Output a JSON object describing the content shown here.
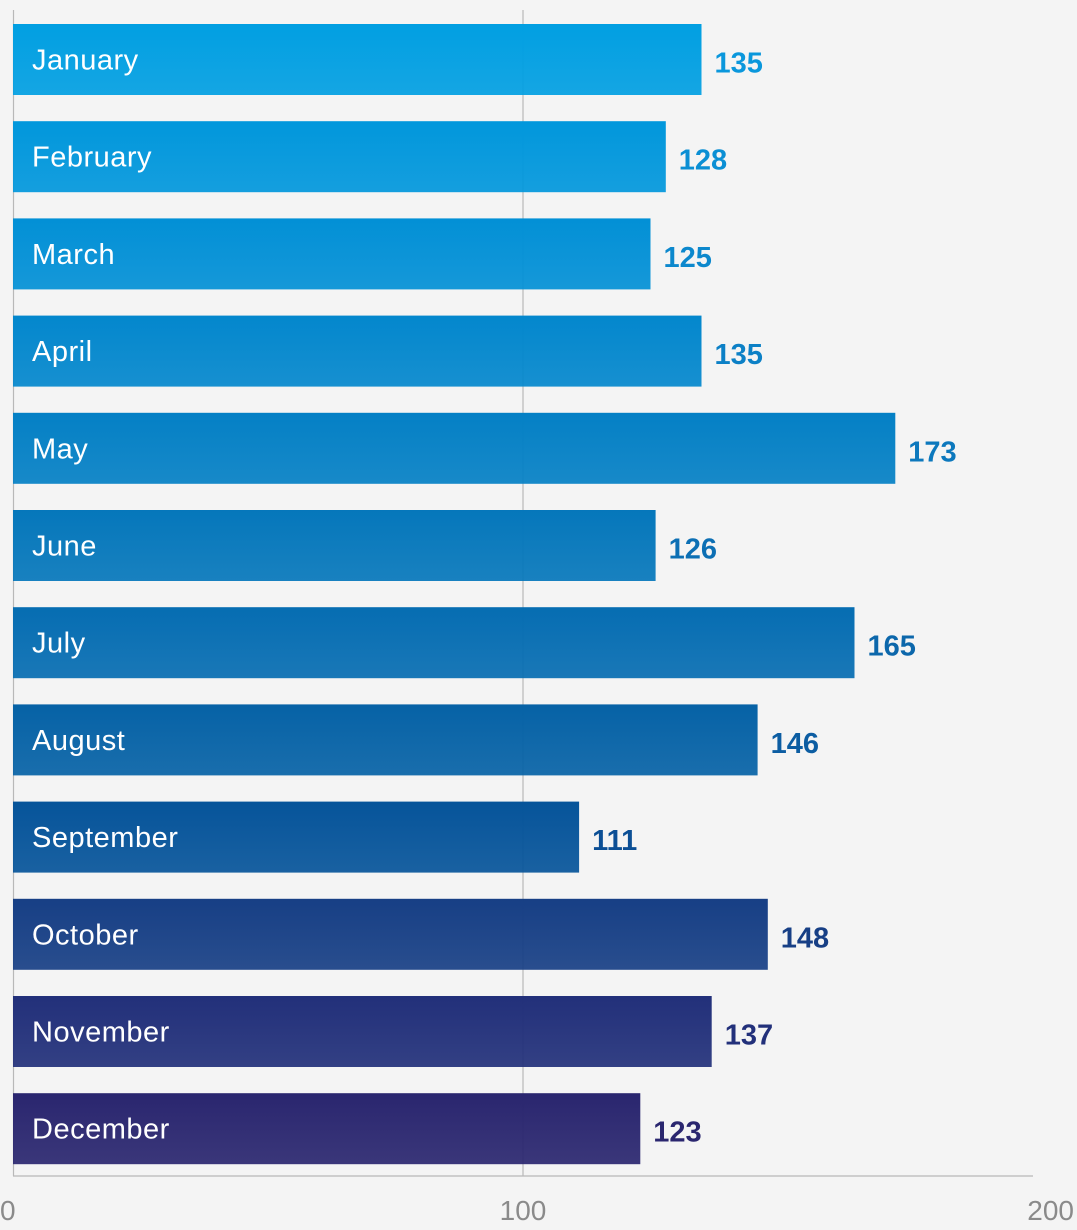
{
  "chart_data": {
    "type": "bar",
    "orientation": "horizontal",
    "categories": [
      "January",
      "February",
      "March",
      "April",
      "May",
      "June",
      "July",
      "August",
      "September",
      "October",
      "November",
      "December"
    ],
    "values": [
      135,
      128,
      125,
      135,
      173,
      126,
      165,
      146,
      111,
      148,
      137,
      123
    ],
    "xlim": [
      0,
      200
    ],
    "x_ticks": [
      "0",
      "100",
      "200"
    ],
    "title": "",
    "xlabel": "",
    "ylabel": "",
    "grid": "vertical at 100",
    "legend": "none",
    "bar_colors": [
      "#019fe2",
      "#0197dc",
      "#0290d6",
      "#0387cd",
      "#0480c5",
      "#0577bb",
      "#066db2",
      "#0662a6",
      "#06549a",
      "#173f85",
      "#22307a",
      "#2a266f"
    ],
    "label_colors": [
      "#0a97dc",
      "#0b8fd4",
      "#0c88cd",
      "#0c80c6",
      "#0c78bd",
      "#0c6fb4",
      "#0c67ab",
      "#0c5da2",
      "#0c4f95",
      "#173f85",
      "#22307a",
      "#2a266f"
    ],
    "background": "#f4f4f4"
  }
}
